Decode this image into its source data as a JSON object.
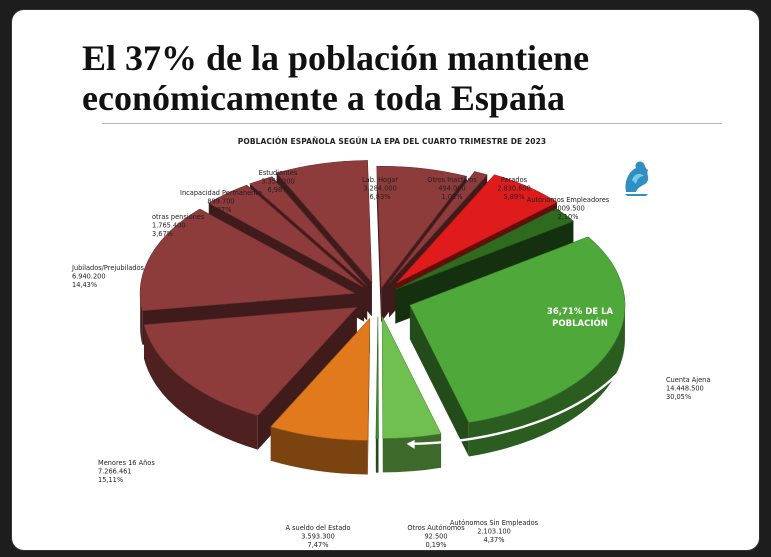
{
  "headline": {
    "line1": "El 37% de la población mantiene",
    "line2": "económicamente a toda España"
  },
  "logo_icon": "griffin-logo-icon",
  "chart_data": {
    "type": "pie",
    "title": "POBLACIÓN ESPAÑOLA SEGÚN LA EPA DEL CUARTO TRIMESTRE DE 2023",
    "style": "3d-exploded",
    "slices": [
      {
        "label": "Lab. Hogar",
        "value_text": "3.284.000",
        "pct_text": "6,83%",
        "pct": 6.83,
        "color": "#8e3b3b"
      },
      {
        "label": "Otros Inactivos",
        "value_text": "494.000",
        "pct_text": "1,03%",
        "pct": 1.03,
        "color": "#8e3b3b"
      },
      {
        "label": "Parados",
        "value_text": "2.830.600",
        "pct_text": "5,89%",
        "pct": 5.89,
        "color": "#e01b1b"
      },
      {
        "label": "Autónomos Empleadores",
        "value_text": "1.009.500",
        "pct_text": "2,10%",
        "pct": 2.1,
        "color": "#2e6b1f"
      },
      {
        "label": "Cuenta Ajena",
        "value_text": "14.448.500",
        "pct_text": "30,05%",
        "pct": 30.05,
        "color": "#4fa83a"
      },
      {
        "label": "Autónomos Sin Empleados",
        "value_text": "2.103.100",
        "pct_text": "4,37%",
        "pct": 4.37,
        "color": "#6fc04f"
      },
      {
        "label": "Otros Autónomos",
        "value_text": "92.500",
        "pct_text": "0,19%",
        "pct": 0.19,
        "color": "#3f8a2f"
      },
      {
        "label": "A sueldo del Estado",
        "value_text": "3.593.300",
        "pct_text": "7,47%",
        "pct": 7.47,
        "color": "#e07a1c"
      },
      {
        "label": "Menores 16 Años",
        "value_text": "7.266.461",
        "pct_text": "15,11%",
        "pct": 15.11,
        "color": "#8e3b3b"
      },
      {
        "label": "Jubilados/Prejubilados",
        "value_text": "6.940.200",
        "pct_text": "14,43%",
        "pct": 14.43,
        "color": "#8e3b3b"
      },
      {
        "label": "otras pensiones",
        "value_text": "1.765.400",
        "pct_text": "3,67%",
        "pct": 3.67,
        "color": "#8e3b3b"
      },
      {
        "label": "Incapacidad Permanente",
        "value_text": "899.700",
        "pct_text": "1,87%",
        "pct": 1.87,
        "color": "#8e3b3b"
      },
      {
        "label": "Estudiantes",
        "value_text": "3.358.200",
        "pct_text": "6,98%",
        "pct": 6.98,
        "color": "#8e3b3b"
      }
    ],
    "callout": {
      "line1": "36,71% DE LA",
      "line2": "POBLACIÓN"
    }
  }
}
